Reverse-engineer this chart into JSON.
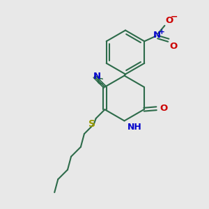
{
  "bg_color": "#e8e8e8",
  "bond_color": "#2d6b4a",
  "N_color": "#0000cc",
  "O_color": "#cc0000",
  "S_color": "#999900",
  "lw": 1.5,
  "figsize": [
    3.0,
    3.0
  ],
  "dpi": 100,
  "xlim": [
    0.0,
    10.0
  ],
  "ylim": [
    0.0,
    10.0
  ]
}
